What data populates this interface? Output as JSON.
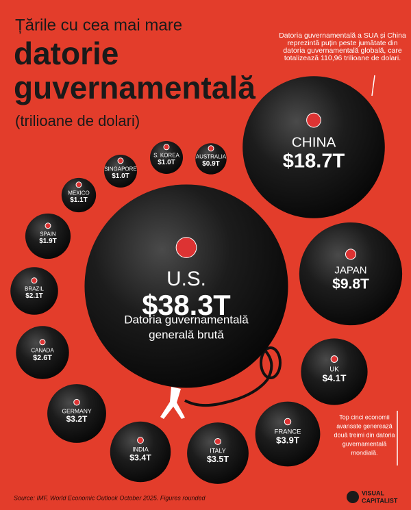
{
  "chart_data": {
    "type": "bubble",
    "pretitle": "Țările cu cea mai mare",
    "title": [
      "datorie",
      "guvernamentală"
    ],
    "subtitle": "(trilioane de dolari)",
    "categories": [
      "U.S.",
      "CHINA",
      "JAPAN",
      "UK",
      "FRANCE",
      "ITALY",
      "INDIA",
      "GERMANY",
      "CANADA",
      "BRAZIL",
      "SPAIN",
      "MEXICO",
      "SINGAPORE",
      "S. KOREA",
      "AUSTRALIA"
    ],
    "values": [
      38.3,
      18.7,
      9.8,
      4.1,
      3.9,
      3.5,
      3.4,
      3.2,
      2.6,
      2.1,
      1.9,
      1.1,
      1.0,
      1.0,
      0.9
    ],
    "value_labels": [
      "$38.3T",
      "$18.7T",
      "$9.8T",
      "$4.1T",
      "$3.9T",
      "$3.5T",
      "$3.4T",
      "$3.2T",
      "$2.6T",
      "$2.1T",
      "$1.9T",
      "$1.1T",
      "$1.0T",
      "$1.0T",
      "$0.9T"
    ],
    "color": "#1a1a1a",
    "center_label": [
      "Datoria guvernamentală",
      "generală brută"
    ],
    "annotations": [
      [
        "Datoria guvernamentală a SUA și China",
        "reprezintă puțin peste jumătate din",
        "datoria guvernamentală globală, care",
        "totalizează 110,96 trilioane de dolari."
      ],
      [
        "Top cinci economii",
        "avansate generează",
        "două treimi din datoria",
        "guvernamentală",
        "mondială."
      ]
    ],
    "source": "Source: IMF, World Economic Outlook October 2025. Figures rounded",
    "brand": [
      "VISUAL",
      "CAPITALIST"
    ]
  }
}
